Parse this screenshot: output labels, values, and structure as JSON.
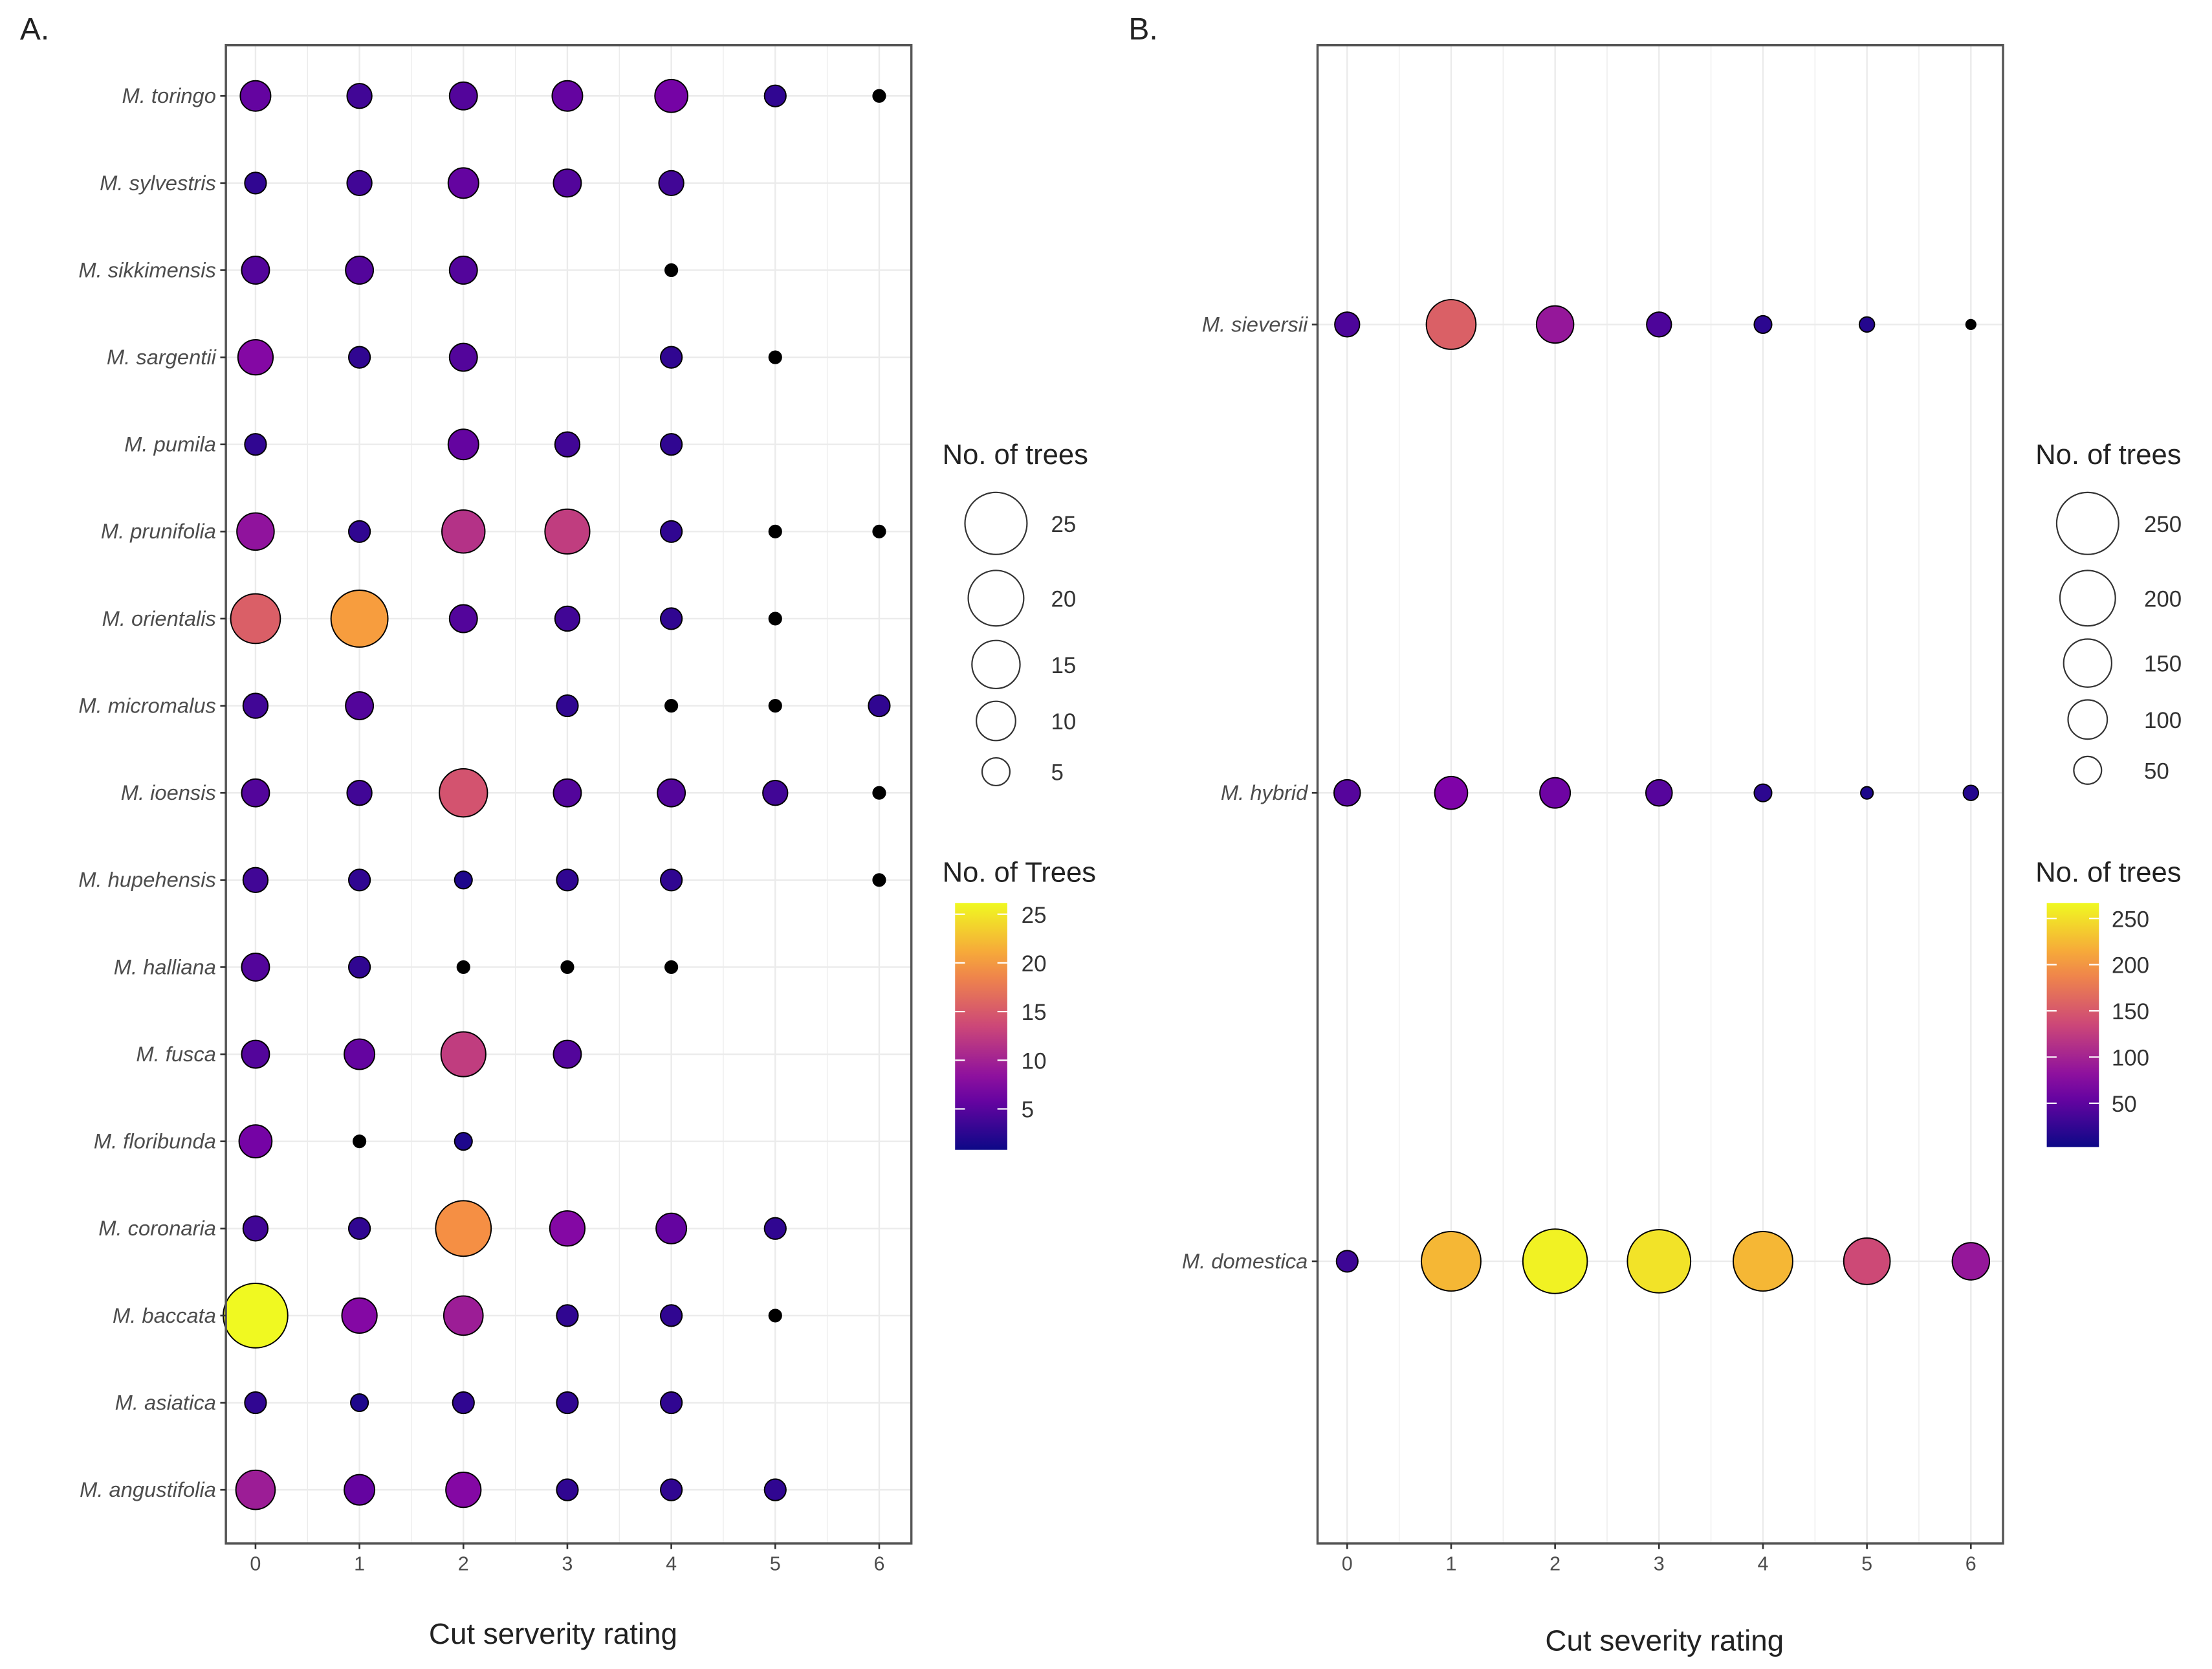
{
  "chart_data": [
    {
      "type": "scatter",
      "panel_label": "A.",
      "xlabel": "Cut serverity rating",
      "ylabel": "",
      "x_ticks": [
        "0",
        "1",
        "2",
        "3",
        "4",
        "5",
        "6"
      ],
      "xlim": [
        0,
        6
      ],
      "grid": true,
      "species": [
        "M. toringo",
        "M. sylvestris",
        "M. sikkimensis",
        "M. sargentii",
        "M. pumila",
        "M. prunifolia",
        "M. orientalis",
        "M. micromalus",
        "M. ioensis",
        "M. hupehensis",
        "M. halliana",
        "M. fusca",
        "M. floribunda",
        "M. coronaria",
        "M. baccata",
        "M. asiatica",
        "M. angustifolia"
      ],
      "values": [
        [
          6,
          4,
          5,
          6,
          7,
          3,
          1
        ],
        [
          3,
          4,
          6,
          5,
          4,
          null,
          null
        ],
        [
          5,
          5,
          5,
          null,
          1,
          null,
          null
        ],
        [
          8,
          3,
          5,
          null,
          3,
          1,
          null
        ],
        [
          3,
          null,
          6,
          4,
          3,
          null,
          null
        ],
        [
          9,
          3,
          12,
          13,
          3,
          1,
          1
        ],
        [
          16,
          21,
          5,
          4,
          3,
          1,
          null
        ],
        [
          4,
          5,
          null,
          3,
          1,
          1,
          3
        ],
        [
          5,
          4,
          15,
          5,
          5,
          4,
          1
        ],
        [
          4,
          3,
          2,
          3,
          3,
          null,
          1
        ],
        [
          5,
          3,
          1,
          1,
          1,
          null,
          null
        ],
        [
          5,
          6,
          13,
          5,
          null,
          null,
          null
        ],
        [
          7,
          1,
          2,
          null,
          null,
          null,
          null
        ],
        [
          4,
          3,
          20,
          8,
          6,
          3,
          null
        ],
        [
          27,
          8,
          10,
          3,
          3,
          1,
          null
        ],
        [
          3,
          2,
          3,
          3,
          3,
          null,
          null
        ],
        [
          10,
          6,
          8,
          3,
          3,
          3,
          null
        ]
      ],
      "color_range": [
        1,
        27
      ],
      "size_legend": {
        "title": "No. of trees",
        "values": [
          25,
          20,
          15,
          10,
          5
        ],
        "labels": [
          "25",
          "20",
          "15",
          "10",
          "5"
        ]
      },
      "color_legend": {
        "title": "No. of Trees",
        "values": [
          25,
          20,
          15,
          10,
          5
        ],
        "labels": [
          "25",
          "20",
          "15",
          "10",
          "5"
        ]
      },
      "legend_position": "right"
    },
    {
      "type": "scatter",
      "panel_label": "B.",
      "xlabel": "Cut severity rating",
      "ylabel": "",
      "x_ticks": [
        "0",
        "1",
        "2",
        "3",
        "4",
        "5",
        "6"
      ],
      "xlim": [
        0,
        6
      ],
      "grid": true,
      "species": [
        "M. sieversii",
        "M. hybrid",
        "M. domestica"
      ],
      "values": [
        [
          40,
          160,
          90,
          40,
          20,
          15,
          1
        ],
        [
          45,
          70,
          60,
          45,
          20,
          10,
          15
        ],
        [
          30,
          230,
          270,
          260,
          230,
          140,
          90
        ]
      ],
      "color_range": [
        1,
        275
      ],
      "size_legend": {
        "title": "No. of trees",
        "values": [
          250,
          200,
          150,
          100,
          50
        ],
        "labels": [
          "250",
          "200",
          "150",
          "100",
          "50"
        ]
      },
      "color_legend": {
        "title": "No. of trees",
        "values": [
          250,
          200,
          150,
          100,
          50
        ],
        "labels": [
          "250",
          "200",
          "150",
          "100",
          "50"
        ]
      },
      "legend_position": "right"
    }
  ],
  "colors": {
    "plasma": [
      "#0d0887",
      "#7e03a8",
      "#cc4778",
      "#f89540",
      "#f0f921"
    ],
    "grid": "#ebebeb",
    "frame": "#555555"
  }
}
